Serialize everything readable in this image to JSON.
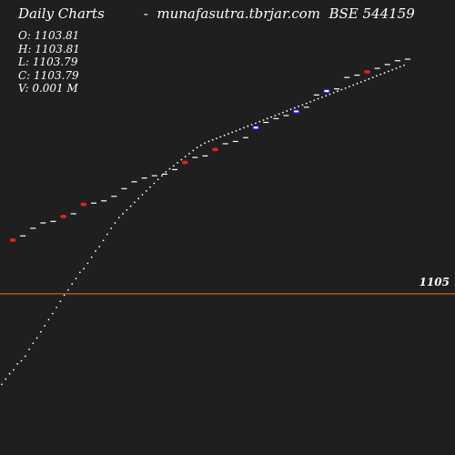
{
  "header": {
    "chart_kind": "Daily Charts",
    "separator": "-",
    "site": "munafasutra.tbrjar.com",
    "ticker": "BSE 544159"
  },
  "ohlc": {
    "open": "O: 1103.81",
    "high": "H: 1103.81",
    "low": "L: 1103.79",
    "close": "C: 1103.79",
    "volume": "V: 0.001 M"
  },
  "colors": {
    "background": "#1f1f1f",
    "reference_line": "#e07a1a",
    "dotted_line": "#ffffff",
    "candle_up": "#2222dd",
    "candle_down": "#dd2222",
    "tick": "#ffffff"
  },
  "chart_data": {
    "type": "line",
    "xlabel": "",
    "ylabel": "",
    "grid": false,
    "reference_line": {
      "value": 1105,
      "label": "1105"
    },
    "series": [
      {
        "values": [
          1103.81,
          1103.88,
          1103.95,
          1104.0,
          1104.08,
          1104.12,
          1104.18,
          1104.27,
          1104.35,
          1104.42,
          1104.5,
          1104.58,
          1104.66,
          1104.74,
          1104.82,
          1104.9,
          1104.98,
          1105.05,
          1105.13,
          1105.2,
          1105.28,
          1105.33,
          1105.4,
          1105.48,
          1105.56,
          1105.62,
          1105.7,
          1105.78,
          1105.86,
          1105.93,
          1106.0,
          1106.05,
          1106.1,
          1106.15,
          1106.2,
          1106.25,
          1106.3,
          1106.35,
          1106.4,
          1106.45,
          1106.5,
          1106.55,
          1106.6,
          1106.64,
          1106.68,
          1106.72,
          1106.76,
          1106.8,
          1106.84,
          1106.88,
          1106.92,
          1106.95,
          1106.98,
          1107.0,
          1107.02,
          1107.04,
          1107.06,
          1107.08,
          1107.1,
          1107.12,
          1107.14,
          1107.16,
          1107.18,
          1107.2,
          1107.22,
          1107.24,
          1107.26,
          1107.28,
          1107.3,
          1107.32,
          1107.34,
          1107.36,
          1107.38,
          1107.4,
          1107.42,
          1107.44,
          1107.46,
          1107.48,
          1107.5,
          1107.52,
          1107.54,
          1107.56,
          1107.58,
          1107.6,
          1107.62,
          1107.64,
          1107.66,
          1107.68,
          1107.7,
          1107.72,
          1107.74,
          1107.76,
          1107.78,
          1107.8,
          1107.82,
          1107.84,
          1107.86,
          1107.88,
          1107.9,
          1107.92,
          1107.94,
          1107.96,
          1107.98,
          1108.0
        ]
      }
    ],
    "candles": [
      {
        "o": 1105.69,
        "c": 1105.71,
        "dir": "down"
      },
      {
        "o": 1105.76,
        "c": 1105.76,
        "dir": "flat"
      },
      {
        "o": 1105.86,
        "c": 1105.86,
        "dir": "flat"
      },
      {
        "o": 1105.93,
        "c": 1105.93,
        "dir": "flat"
      },
      {
        "o": 1105.95,
        "c": 1105.95,
        "dir": "flat"
      },
      {
        "o": 1106.0,
        "c": 1106.02,
        "dir": "down"
      },
      {
        "o": 1106.05,
        "c": 1106.05,
        "dir": "flat"
      },
      {
        "o": 1106.16,
        "c": 1106.18,
        "dir": "down"
      },
      {
        "o": 1106.19,
        "c": 1106.19,
        "dir": "flat"
      },
      {
        "o": 1106.22,
        "c": 1106.22,
        "dir": "flat"
      },
      {
        "o": 1106.28,
        "c": 1106.28,
        "dir": "flat"
      },
      {
        "o": 1106.38,
        "c": 1106.38,
        "dir": "flat"
      },
      {
        "o": 1106.47,
        "c": 1106.47,
        "dir": "flat"
      },
      {
        "o": 1106.52,
        "c": 1106.52,
        "dir": "flat"
      },
      {
        "o": 1106.55,
        "c": 1106.55,
        "dir": "flat"
      },
      {
        "o": 1106.57,
        "c": 1106.57,
        "dir": "flat"
      },
      {
        "o": 1106.63,
        "c": 1106.63,
        "dir": "flat"
      },
      {
        "o": 1106.71,
        "c": 1106.73,
        "dir": "down"
      },
      {
        "o": 1106.79,
        "c": 1106.79,
        "dir": "flat"
      },
      {
        "o": 1106.81,
        "c": 1106.81,
        "dir": "flat"
      },
      {
        "o": 1106.88,
        "c": 1106.9,
        "dir": "down"
      },
      {
        "o": 1106.97,
        "c": 1106.97,
        "dir": "flat"
      },
      {
        "o": 1107.0,
        "c": 1107.0,
        "dir": "flat"
      },
      {
        "o": 1107.05,
        "c": 1107.05,
        "dir": "flat"
      },
      {
        "o": 1107.15,
        "c": 1107.19,
        "dir": "up"
      },
      {
        "o": 1107.25,
        "c": 1107.25,
        "dir": "flat"
      },
      {
        "o": 1107.3,
        "c": 1107.3,
        "dir": "flat"
      },
      {
        "o": 1107.34,
        "c": 1107.34,
        "dir": "flat"
      },
      {
        "o": 1107.38,
        "c": 1107.4,
        "dir": "up"
      },
      {
        "o": 1107.45,
        "c": 1107.45,
        "dir": "flat"
      },
      {
        "o": 1107.61,
        "c": 1107.61,
        "dir": "flat"
      },
      {
        "o": 1107.63,
        "c": 1107.67,
        "dir": "up"
      },
      {
        "o": 1107.69,
        "c": 1107.69,
        "dir": "flat"
      },
      {
        "o": 1107.84,
        "c": 1107.84,
        "dir": "flat"
      },
      {
        "o": 1107.87,
        "c": 1107.87,
        "dir": "flat"
      },
      {
        "o": 1107.9,
        "c": 1107.92,
        "dir": "down"
      },
      {
        "o": 1107.96,
        "c": 1107.96,
        "dir": "flat"
      },
      {
        "o": 1108.01,
        "c": 1108.01,
        "dir": "flat"
      },
      {
        "o": 1108.06,
        "c": 1108.06,
        "dir": "flat"
      },
      {
        "o": 1108.08,
        "c": 1108.08,
        "dir": "flat"
      }
    ]
  }
}
